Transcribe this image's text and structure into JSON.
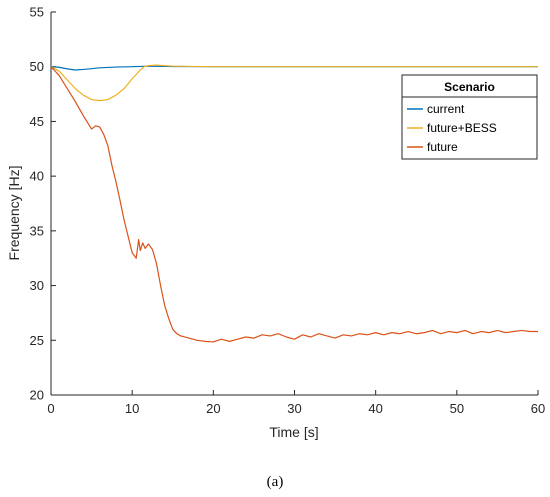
{
  "chart_data": {
    "type": "line",
    "title": "",
    "xlabel": "Time [s]",
    "ylabel": "Frequency [Hz]",
    "xlim": [
      0,
      60
    ],
    "ylim": [
      20,
      55
    ],
    "xticks": [
      "0",
      "10",
      "20",
      "30",
      "40",
      "50",
      "60"
    ],
    "yticks": [
      "20",
      "25",
      "30",
      "35",
      "40",
      "45",
      "50",
      "55"
    ],
    "grid": false,
    "legend": {
      "title": "Scenario",
      "placement": "top-right"
    },
    "series": [
      {
        "name": "current",
        "color": "#0072BD",
        "x": [
          0,
          1,
          2,
          3,
          4,
          5,
          6,
          8,
          10,
          12,
          15,
          20,
          30,
          40,
          50,
          60
        ],
        "y": [
          50,
          49.95,
          49.8,
          49.7,
          49.75,
          49.82,
          49.9,
          49.97,
          50,
          50.05,
          50.02,
          50,
          50,
          50,
          50,
          50
        ]
      },
      {
        "name": "future+BESS",
        "color": "#EDB120",
        "x": [
          0,
          1,
          2,
          3,
          4,
          5,
          6,
          7,
          8,
          9,
          10,
          11,
          11.5,
          12,
          13,
          14,
          15,
          20,
          30,
          40,
          50,
          60
        ],
        "y": [
          50,
          49.6,
          48.8,
          48.0,
          47.4,
          47.0,
          46.9,
          47.0,
          47.4,
          48.0,
          48.9,
          49.7,
          50.0,
          50.1,
          50.15,
          50.1,
          50.05,
          50,
          50,
          50,
          50,
          50
        ]
      },
      {
        "name": "future",
        "color": "#D95319",
        "x": [
          0,
          1,
          2,
          3,
          4,
          5,
          5.5,
          6,
          6.5,
          7,
          7.5,
          8,
          8.5,
          9,
          9.5,
          10,
          10.5,
          10.8,
          11,
          11.3,
          11.6,
          12,
          12.5,
          13,
          13.5,
          14,
          14.5,
          15,
          15.5,
          16,
          17,
          18,
          19,
          20,
          21,
          22,
          23,
          24,
          25,
          26,
          27,
          28,
          29,
          30,
          31,
          32,
          33,
          34,
          35,
          36,
          37,
          38,
          39,
          40,
          41,
          42,
          43,
          44,
          45,
          46,
          47,
          48,
          49,
          50,
          51,
          52,
          53,
          54,
          55,
          56,
          57,
          58,
          59,
          60
        ],
        "y": [
          50,
          49.2,
          48.0,
          46.8,
          45.5,
          44.3,
          44.6,
          44.5,
          43.8,
          42.8,
          41.0,
          39.5,
          37.8,
          36.0,
          34.5,
          33.0,
          32.5,
          34.2,
          33.2,
          33.9,
          33.4,
          33.8,
          33.3,
          32.0,
          30.0,
          28.2,
          27.0,
          26.0,
          25.6,
          25.4,
          25.2,
          25.0,
          24.9,
          24.85,
          25.1,
          24.9,
          25.1,
          25.3,
          25.2,
          25.5,
          25.4,
          25.6,
          25.3,
          25.1,
          25.5,
          25.3,
          25.6,
          25.4,
          25.2,
          25.5,
          25.4,
          25.6,
          25.5,
          25.7,
          25.5,
          25.7,
          25.6,
          25.8,
          25.6,
          25.7,
          25.9,
          25.6,
          25.8,
          25.7,
          25.9,
          25.6,
          25.8,
          25.7,
          25.9,
          25.7,
          25.8,
          25.9,
          25.8,
          25.8
        ]
      }
    ]
  },
  "caption": "(a)"
}
